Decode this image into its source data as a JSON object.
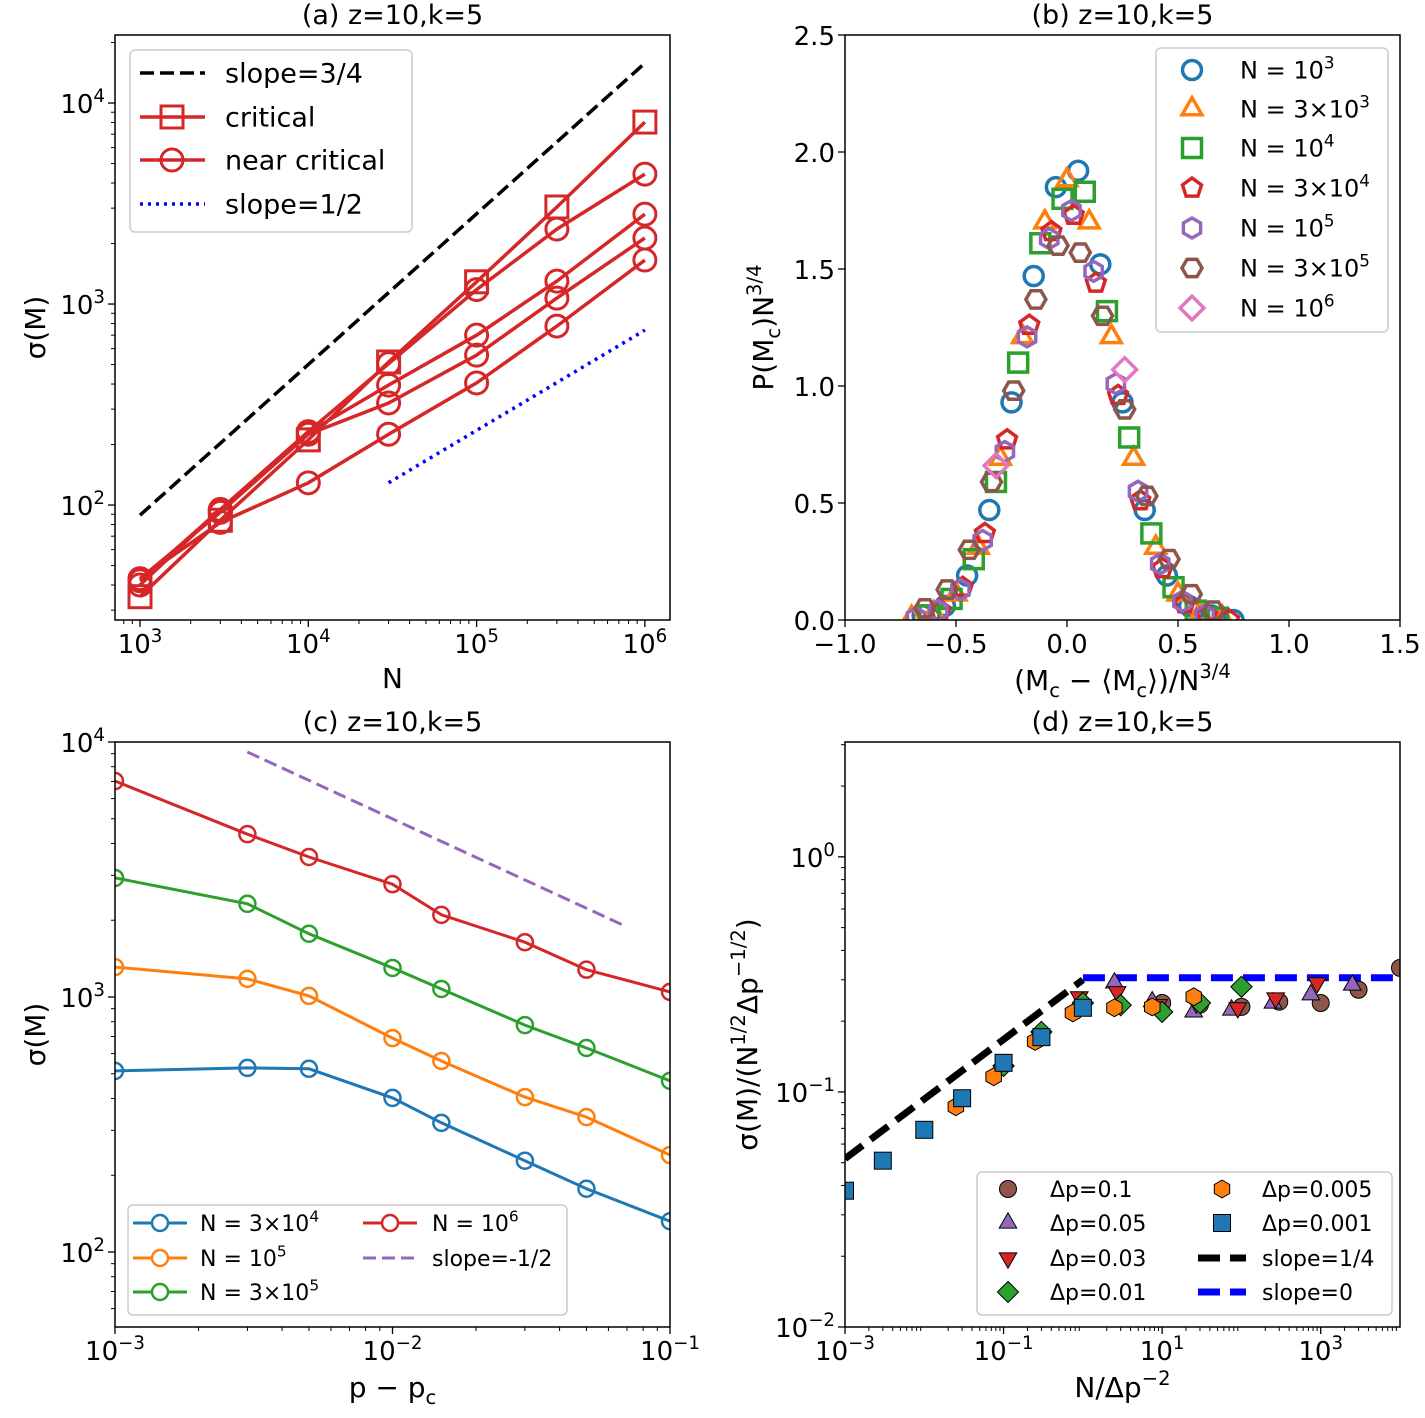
{
  "chart_data": [
    {
      "panel": "a",
      "type": "line",
      "title": "(a) z=10,k=5",
      "xlabel": "N",
      "ylabel": "σ(M)",
      "xscale": "log",
      "yscale": "log",
      "xlim": [
        710,
        1410000
      ],
      "ylim": [
        26.8,
        21800
      ],
      "xticks": [
        1000,
        10000,
        100000,
        1000000
      ],
      "xticklabels": [
        "10^{3}",
        "10^{4}",
        "10^{5}",
        "10^{6}"
      ],
      "yticks": [
        100,
        1000,
        10000
      ],
      "yticklabels": [
        "10^{2}",
        "10^{3}",
        "10^{4}"
      ],
      "grid": false,
      "legend_position": "upper left",
      "series": [
        {
          "name": "slope=3/4",
          "color": "#000000",
          "linestyle": "dashed",
          "marker": "none",
          "x": [
            1000,
            1000000
          ],
          "y": [
            89,
            15800
          ]
        },
        {
          "name": "critical",
          "color": "#d62728",
          "linestyle": "solid",
          "marker": "square",
          "x": [
            1000,
            3000,
            10000,
            30000,
            100000,
            300000,
            1000000
          ],
          "y": [
            35,
            84,
            211,
            515,
            1290,
            3040,
            8040
          ]
        },
        {
          "name": "near critical",
          "color": "#d62728",
          "linestyle": "solid",
          "marker": "circle",
          "x": [
            1000,
            3000,
            10000,
            30000,
            100000,
            300000,
            1000000
          ],
          "y": [
            40,
            95,
            232,
            505,
            1180,
            2360,
            4430
          ]
        },
        {
          "name": "slope=1/2",
          "color": "#0000ff",
          "linestyle": "dotted",
          "marker": "none",
          "x": [
            30000,
            1000000
          ],
          "y": [
            129,
            742
          ]
        },
        {
          "color": "#d62728",
          "linestyle": "solid",
          "marker": "circle",
          "x": [
            1000,
            3000,
            10000,
            30000,
            100000,
            300000,
            1000000
          ],
          "y": [
            42,
            95,
            230,
            395,
            700,
            1300,
            2800
          ]
        },
        {
          "color": "#d62728",
          "linestyle": "solid",
          "marker": "circle",
          "x": [
            1000,
            3000,
            10000,
            30000,
            100000,
            300000,
            1000000
          ],
          "y": [
            43,
            92,
            225,
            322,
            557,
            1070,
            2130
          ]
        },
        {
          "color": "#d62728",
          "linestyle": "solid",
          "marker": "circle",
          "x": [
            1000,
            3000,
            10000,
            30000,
            100000,
            300000,
            1000000
          ],
          "y": [
            43,
            82,
            129,
            225,
            405,
            777,
            1655
          ]
        }
      ]
    },
    {
      "panel": "b",
      "type": "scatter",
      "title": "(b) z=10,k=5",
      "xlabel": "(M_{c} − ⟨M_{c}⟩)/N^{3/4}",
      "ylabel": "P(M_{c})N^{3/4}",
      "xscale": "linear",
      "yscale": "linear",
      "xlim": [
        -1.0,
        1.5
      ],
      "ylim": [
        0,
        2.5
      ],
      "xticks": [
        -1.0,
        -0.5,
        0.0,
        0.5,
        1.0,
        1.5
      ],
      "xticklabels": [
        "−1.0",
        "−0.5",
        "0.0",
        "0.5",
        "1.0",
        "1.5"
      ],
      "yticks": [
        0,
        0.5,
        1.0,
        1.5,
        2.0,
        2.5
      ],
      "yticklabels": [
        "0.0",
        "0.5",
        "1.0",
        "1.5",
        "2.0",
        "2.5"
      ],
      "grid": false,
      "legend_position": "upper right",
      "series": [
        {
          "name": "N = 10^{3}",
          "color": "#1f77b4",
          "marker": "circle",
          "filled": false,
          "linestyle": "none",
          "x": [
            -0.65,
            -0.55,
            -0.45,
            -0.35,
            -0.25,
            -0.15,
            -0.05,
            0.05,
            0.15,
            0.25,
            0.35,
            0.45,
            0.55,
            0.65,
            0.75
          ],
          "y": [
            0.02,
            0.06,
            0.19,
            0.47,
            0.93,
            1.47,
            1.85,
            1.92,
            1.52,
            0.93,
            0.47,
            0.19,
            0.06,
            0.02,
            0.0
          ]
        },
        {
          "name": "N = 3×10^{3}",
          "color": "#ff7f0e",
          "marker": "triangle-up",
          "filled": false,
          "linestyle": "none",
          "x": [
            -0.7,
            -0.6,
            -0.5,
            -0.4,
            -0.3,
            -0.2,
            -0.1,
            0.0,
            0.1,
            0.2,
            0.3,
            0.4,
            0.5,
            0.6,
            0.7
          ],
          "y": [
            0.01,
            0.03,
            0.11,
            0.31,
            0.69,
            1.21,
            1.7,
            1.88,
            1.7,
            1.21,
            0.69,
            0.31,
            0.11,
            0.03,
            0.01
          ]
        },
        {
          "name": "N = 10^{4}",
          "color": "#2ca02c",
          "marker": "square",
          "filled": false,
          "linestyle": "none",
          "x": [
            -0.62,
            -0.52,
            -0.42,
            -0.32,
            -0.22,
            -0.12,
            -0.02,
            0.08,
            0.18,
            0.28,
            0.38,
            0.48,
            0.58,
            0.68
          ],
          "y": [
            0.02,
            0.09,
            0.26,
            0.59,
            1.1,
            1.61,
            1.8,
            1.83,
            1.32,
            0.78,
            0.37,
            0.14,
            0.04,
            0.01
          ]
        },
        {
          "name": "N = 3×10^{4}",
          "color": "#d62728",
          "marker": "pentagon",
          "filled": false,
          "linestyle": "none",
          "x": [
            -0.57,
            -0.47,
            -0.37,
            -0.27,
            -0.17,
            -0.07,
            0.03,
            0.13,
            0.23,
            0.33,
            0.43,
            0.53,
            0.63,
            0.73
          ],
          "y": [
            0.04,
            0.14,
            0.37,
            0.77,
            1.26,
            1.66,
            1.73,
            1.44,
            0.96,
            0.51,
            0.22,
            0.07,
            0.02,
            0.0
          ]
        },
        {
          "name": "N = 10^{5}",
          "color": "#9467bd",
          "marker": "hexagon",
          "filled": false,
          "linestyle": "none",
          "x": [
            -0.68,
            -0.58,
            -0.48,
            -0.38,
            -0.28,
            -0.18,
            -0.08,
            0.02,
            0.12,
            0.22,
            0.32,
            0.42,
            0.52,
            0.62
          ],
          "y": [
            0.01,
            0.04,
            0.13,
            0.34,
            0.72,
            1.21,
            1.63,
            1.75,
            1.49,
            1.01,
            0.55,
            0.24,
            0.08,
            0.02
          ]
        },
        {
          "name": "N = 3×10^{5}",
          "color": "#8c564b",
          "marker": "hexagon-flat",
          "filled": false,
          "linestyle": "none",
          "x": [
            -0.64,
            -0.54,
            -0.44,
            -0.34,
            -0.24,
            -0.14,
            -0.04,
            0.06,
            0.16,
            0.26,
            0.36,
            0.46,
            0.56,
            0.66
          ],
          "y": [
            0.05,
            0.13,
            0.3,
            0.59,
            0.98,
            1.37,
            1.6,
            1.57,
            1.3,
            0.9,
            0.53,
            0.26,
            0.11,
            0.04
          ]
        },
        {
          "name": "N = 10^{6}",
          "color": "#e377c2",
          "marker": "diamond",
          "filled": false,
          "linestyle": "none",
          "x": [
            -0.32,
            0.26
          ],
          "y": [
            0.66,
            1.07
          ]
        }
      ]
    },
    {
      "panel": "c",
      "type": "line",
      "title": "(c) z=10,k=5",
      "xlabel": "p − p_{c}",
      "ylabel": "σ(M)",
      "xscale": "log",
      "yscale": "log",
      "xlim": [
        0.001,
        0.1
      ],
      "ylim": [
        50.8,
        10000
      ],
      "xticks": [
        0.001,
        0.01,
        0.1
      ],
      "xticklabels": [
        "10^{−3}",
        "10^{−2}",
        "10^{−1}"
      ],
      "yticks": [
        100,
        1000,
        10000
      ],
      "yticklabels": [
        "10^{2}",
        "10^{3}",
        "10^{4}"
      ],
      "grid": false,
      "legend_position": "lower left",
      "legend_columns": 2,
      "series": [
        {
          "name": "N = 3×10^{4}",
          "color": "#1f77b4",
          "marker": "circle",
          "filled": false,
          "linestyle": "solid",
          "x": [
            0.001,
            0.003,
            0.005,
            0.01,
            0.015,
            0.03,
            0.05,
            0.1
          ],
          "y": [
            513,
            527,
            523,
            402,
            321,
            228,
            177,
            132
          ]
        },
        {
          "name": "N = 10^{5}",
          "color": "#ff7f0e",
          "marker": "circle",
          "filled": false,
          "linestyle": "solid",
          "x": [
            0.001,
            0.003,
            0.005,
            0.01,
            0.015,
            0.03,
            0.05,
            0.1
          ],
          "y": [
            1310,
            1178,
            1010,
            690,
            561,
            405,
            338,
            240
          ]
        },
        {
          "name": "N = 3×10^{5}",
          "color": "#2ca02c",
          "marker": "circle",
          "filled": false,
          "linestyle": "solid",
          "x": [
            0.001,
            0.003,
            0.005,
            0.01,
            0.015,
            0.03,
            0.05,
            0.1
          ],
          "y": [
            2930,
            2320,
            1770,
            1300,
            1075,
            776,
            631,
            469
          ]
        },
        {
          "name": "N = 10^{6}",
          "color": "#d62728",
          "marker": "circle",
          "filled": false,
          "linestyle": "solid",
          "x": [
            0.001,
            0.003,
            0.005,
            0.01,
            0.015,
            0.03,
            0.05,
            0.1
          ],
          "y": [
            7030,
            4350,
            3540,
            2770,
            2100,
            1640,
            1280,
            1047
          ]
        },
        {
          "name": "slope=-1/2",
          "color": "#9467bd",
          "marker": "none",
          "linestyle": "dashed",
          "x": [
            0.003,
            0.0676
          ],
          "y": [
            9140,
            1915
          ]
        }
      ]
    },
    {
      "panel": "d",
      "type": "scatter",
      "title": "(d) z=10,k=5",
      "xlabel": "N/Δp^{−2}",
      "ylabel": "σ(M)/(N^{1/2}Δp^{−1/2})",
      "xscale": "log",
      "yscale": "log",
      "xlim": [
        0.001,
        10000
      ],
      "ylim": [
        0.01,
        3.08
      ],
      "xticks": [
        0.001,
        0.1,
        10,
        1000
      ],
      "xticklabels": [
        "10^{−3}",
        "10^{−1}",
        "10^{1}",
        "10^{3}"
      ],
      "yticks": [
        0.01,
        0.1,
        1
      ],
      "yticklabels": [
        "10^{−2}",
        "10^{−1}",
        "10^{0}"
      ],
      "grid": false,
      "legend_position": "lower right",
      "legend_columns": 2,
      "series": [
        {
          "name": "Δp=0.1",
          "color": "#8c564b",
          "marker": "circle",
          "filled": true,
          "linestyle": "none",
          "x": [
            10,
            30,
            100,
            300,
            1000,
            3000,
            10000
          ],
          "y": [
            0.239,
            0.235,
            0.23,
            0.242,
            0.239,
            0.272,
            0.337
          ]
        },
        {
          "name": "Δp=0.05",
          "color": "#9467bd",
          "marker": "triangle-up",
          "filled": true,
          "linestyle": "none",
          "x": [
            2.5,
            7.5,
            25,
            75,
            250,
            750,
            2500
          ],
          "y": [
            0.291,
            0.242,
            0.219,
            0.223,
            0.239,
            0.259,
            0.285
          ]
        },
        {
          "name": "Δp=0.03",
          "color": "#d62728",
          "marker": "triangle-down",
          "filled": true,
          "linestyle": "none",
          "x": [
            0.9,
            2.7,
            9,
            27,
            90,
            270,
            900
          ],
          "y": [
            0.254,
            0.267,
            0.235,
            0.239,
            0.228,
            0.251,
            0.291
          ]
        },
        {
          "name": "Δp=0.01",
          "color": "#2ca02c",
          "marker": "diamond",
          "filled": true,
          "linestyle": "none",
          "x": [
            0.1,
            0.3,
            1,
            3,
            10,
            30,
            100
          ],
          "y": [
            0.129,
            0.18,
            0.239,
            0.234,
            0.219,
            0.239,
            0.28
          ]
        },
        {
          "name": "Δp=0.005",
          "color": "#ff7f0e",
          "marker": "hexagon",
          "filled": true,
          "linestyle": "none",
          "x": [
            0.025,
            0.075,
            0.25,
            0.75,
            2.5,
            7.5,
            25
          ],
          "y": [
            0.0865,
            0.116,
            0.164,
            0.217,
            0.228,
            0.23,
            0.254
          ]
        },
        {
          "name": "Δp=0.001",
          "color": "#1f77b4",
          "marker": "square",
          "filled": true,
          "linestyle": "none",
          "x": [
            0.001,
            0.003,
            0.01,
            0.03,
            0.1,
            0.3,
            1
          ],
          "y": [
            0.038,
            0.051,
            0.069,
            0.094,
            0.133,
            0.171,
            0.228
          ]
        },
        {
          "name": "slope=1/4",
          "color": "#000000",
          "marker": "none",
          "linestyle": "dashed",
          "x": [
            0.001,
            1
          ],
          "y": [
            0.052,
            0.3
          ]
        },
        {
          "name": "slope=0",
          "color": "#0000ff",
          "marker": "none",
          "linestyle": "dashed",
          "x": [
            1,
            10000
          ],
          "y": [
            0.306,
            0.306
          ]
        }
      ]
    }
  ]
}
